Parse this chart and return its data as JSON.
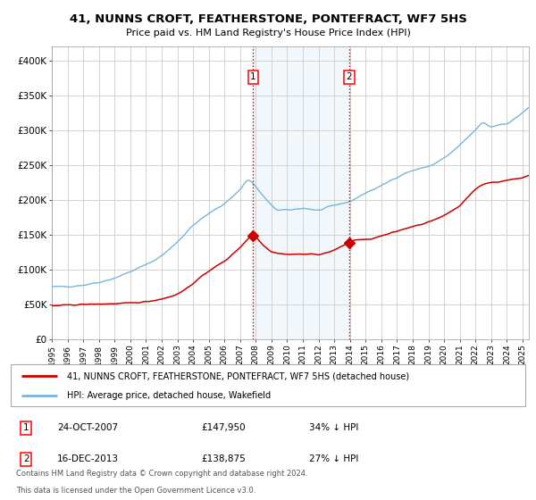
{
  "title": "41, NUNNS CROFT, FEATHERSTONE, PONTEFRACT, WF7 5HS",
  "subtitle": "Price paid vs. HM Land Registry's House Price Index (HPI)",
  "legend_line1": "41, NUNNS CROFT, FEATHERSTONE, PONTEFRACT, WF7 5HS (detached house)",
  "legend_line2": "HPI: Average price, detached house, Wakefield",
  "footnote1": "Contains HM Land Registry data © Crown copyright and database right 2024.",
  "footnote2": "This data is licensed under the Open Government Licence v3.0.",
  "table_row1": [
    "1",
    "24-OCT-2007",
    "£147,950",
    "34% ↓ HPI"
  ],
  "table_row2": [
    "2",
    "16-DEC-2013",
    "£138,875",
    "27% ↓ HPI"
  ],
  "hpi_color": "#7ab5d8",
  "price_color": "#cc0000",
  "marker_color": "#cc0000",
  "vline_color": "#cc0000",
  "shade_color": "#daeaf5",
  "grid_color": "#cccccc",
  "bg_color": "#ffffff",
  "ylim": [
    0,
    420000
  ],
  "yticks": [
    0,
    50000,
    100000,
    150000,
    200000,
    250000,
    300000,
    350000,
    400000
  ],
  "event1_x": 2007.82,
  "event1_y": 147950,
  "event2_x": 2013.96,
  "event2_y": 138875,
  "xmin": 1995.0,
  "xmax": 2025.4,
  "hpi_anchors_t": [
    1995,
    1996,
    1997,
    1998,
    1999,
    2000,
    2001,
    2002,
    2003,
    2004,
    2005,
    2006,
    2007,
    2007.5,
    2008.3,
    2009,
    2009.5,
    2010,
    2011,
    2012,
    2013,
    2014,
    2015,
    2016,
    2017,
    2018,
    2019,
    2020,
    2021,
    2022,
    2022.5,
    2023,
    2023.5,
    2024,
    2025,
    2025.4
  ],
  "hpi_anchors_v": [
    75000,
    76000,
    78000,
    82000,
    88000,
    97000,
    107000,
    120000,
    140000,
    163000,
    180000,
    195000,
    215000,
    228000,
    210000,
    192000,
    185000,
    185000,
    188000,
    185000,
    192000,
    198000,
    210000,
    220000,
    233000,
    242000,
    248000,
    260000,
    278000,
    300000,
    310000,
    305000,
    308000,
    310000,
    325000,
    332000
  ],
  "price_anchors_t": [
    1995,
    1996,
    1997,
    1998,
    1999,
    2000,
    2001,
    2002,
    2003,
    2004,
    2005,
    2006,
    2007,
    2007.82,
    2008.5,
    2009,
    2010,
    2011,
    2012,
    2013,
    2013.96,
    2014.5,
    2015,
    2016,
    2017,
    2018,
    2019,
    2020,
    2021,
    2022,
    2022.5,
    2023,
    2023.5,
    2024,
    2025,
    2025.4
  ],
  "price_anchors_v": [
    48000,
    49000,
    50000,
    50500,
    51000,
    52000,
    54000,
    58000,
    65000,
    80000,
    98000,
    112000,
    132000,
    147950,
    135000,
    126000,
    122000,
    122000,
    122000,
    128000,
    138875,
    143000,
    143000,
    148000,
    155000,
    162000,
    168000,
    178000,
    192000,
    215000,
    222000,
    225000,
    226000,
    228000,
    232000,
    235000
  ]
}
